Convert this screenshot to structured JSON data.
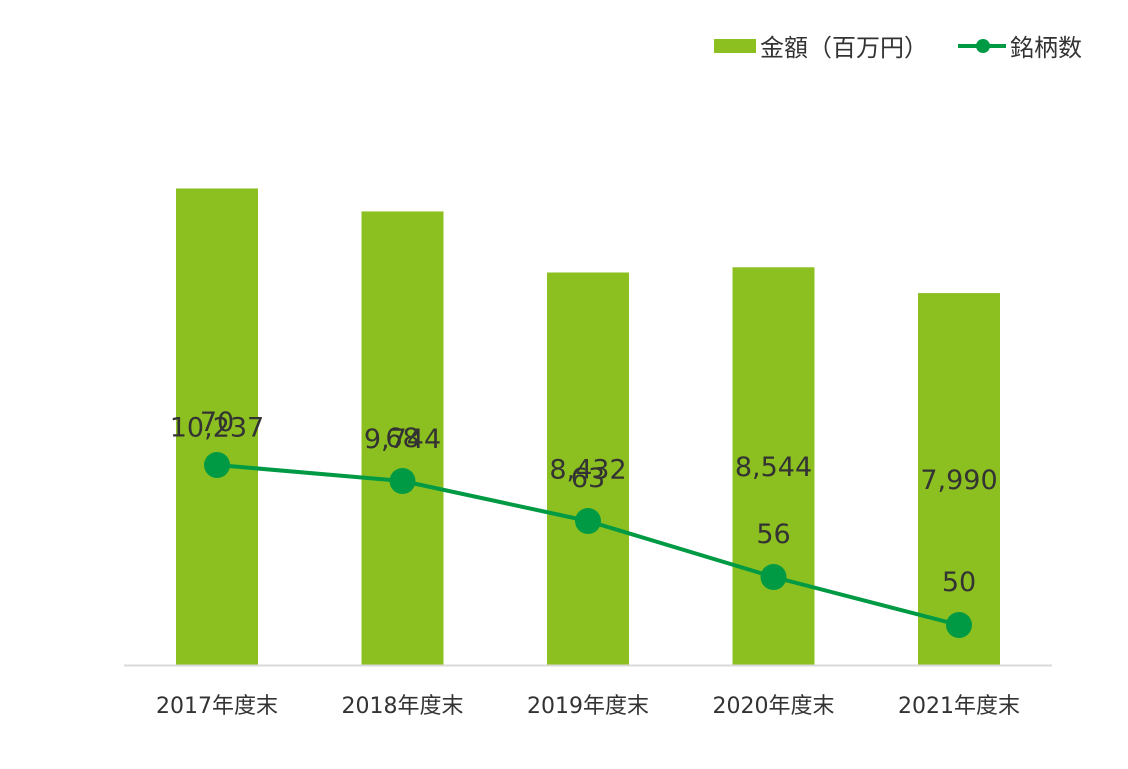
{
  "chart_data": {
    "type": "bar",
    "categories": [
      "2017年度末",
      "2018年度末",
      "2019年度末",
      "2020年度末",
      "2021年度末"
    ],
    "series": [
      {
        "name": "金額（百万円）",
        "type": "bar",
        "values": [
          10237,
          9744,
          8432,
          8544,
          7990
        ],
        "labels": [
          "10,237",
          "9,744",
          "8,432",
          "8,544",
          "7,990"
        ],
        "color": "#8cc020"
      },
      {
        "name": "銘柄数",
        "type": "line",
        "values": [
          70,
          68,
          63,
          56,
          50
        ],
        "labels": [
          "70",
          "68",
          "63",
          "56",
          "50"
        ],
        "color": "#009a44"
      }
    ],
    "legend_position": "top-right",
    "grid": false
  },
  "colors": {
    "bar": "#8cc020",
    "line": "#009a44",
    "axis": "#d9d9d9",
    "text": "#333333"
  }
}
